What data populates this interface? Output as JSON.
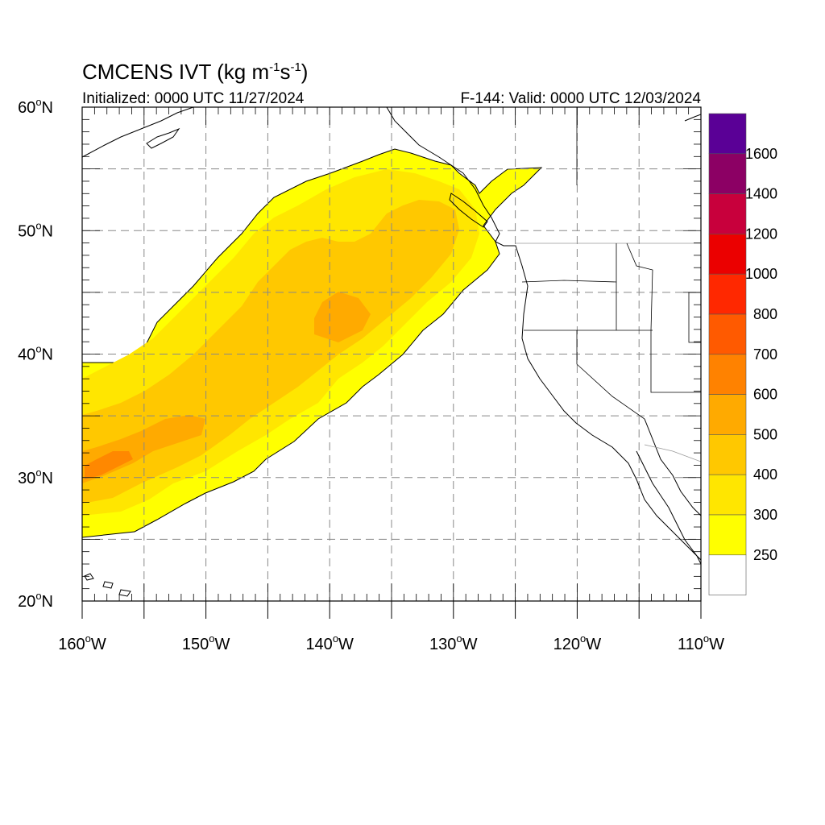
{
  "title": {
    "model": "CMCENS IVT (kg m",
    "exp1": "-1",
    "mid": "s",
    "exp2": "-1",
    "close": ")"
  },
  "initialized": "Initialized: 0000 UTC 11/27/2024",
  "valid": "F-144: Valid: 0000 UTC 12/03/2024",
  "axes": {
    "lon_min": -160,
    "lon_max": -110,
    "lat_min": 20,
    "lat_max": 60,
    "lon_ticks": [
      {
        "value": -160,
        "deg": "160",
        "hemi": "W"
      },
      {
        "value": -150,
        "deg": "150",
        "hemi": "W"
      },
      {
        "value": -140,
        "deg": "140",
        "hemi": "W"
      },
      {
        "value": -130,
        "deg": "130",
        "hemi": "W"
      },
      {
        "value": -120,
        "deg": "120",
        "hemi": "W"
      },
      {
        "value": -110,
        "deg": "110",
        "hemi": "W"
      }
    ],
    "lat_ticks": [
      {
        "value": 20,
        "deg": "20",
        "hemi": "N"
      },
      {
        "value": 30,
        "deg": "30",
        "hemi": "N"
      },
      {
        "value": 40,
        "deg": "40",
        "hemi": "N"
      },
      {
        "value": 50,
        "deg": "50",
        "hemi": "N"
      },
      {
        "value": 60,
        "deg": "60",
        "hemi": "N"
      }
    ],
    "grid": "dashed, every 5 degrees"
  },
  "colorbar": {
    "levels": [
      {
        "label": "250",
        "color": "#ffff00"
      },
      {
        "label": "300",
        "color": "#ffe600"
      },
      {
        "label": "400",
        "color": "#ffc800"
      },
      {
        "label": "500",
        "color": "#ffaa00"
      },
      {
        "label": "600",
        "color": "#ff8200"
      },
      {
        "label": "700",
        "color": "#ff5a00"
      },
      {
        "label": "800",
        "color": "#ff2800"
      },
      {
        "label": "1000",
        "color": "#eb0000"
      },
      {
        "label": "1200",
        "color": "#c8003c"
      },
      {
        "label": "1400",
        "color": "#8c0064"
      },
      {
        "label": "1600",
        "color": "#5a0096"
      }
    ]
  },
  "chart_data": {
    "type": "heatmap",
    "variable": "IVT",
    "units": "kg m-1 s-1",
    "region": {
      "lon_range": [
        -160,
        -110
      ],
      "lat_range": [
        20,
        60
      ]
    },
    "features": [
      {
        "name": "atmospheric river plume",
        "min_level": 250,
        "extent_lon": [
          -160,
          -123
        ],
        "extent_lat": [
          25,
          56
        ]
      },
      {
        "name": "core maximum",
        "level": 500,
        "approx_lon": -157,
        "approx_lat": 31
      },
      {
        "name": "secondary maximum",
        "level": 400,
        "approx_lon": -139,
        "approx_lat": 43
      }
    ]
  }
}
